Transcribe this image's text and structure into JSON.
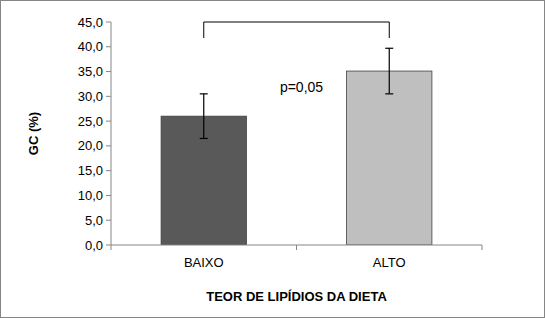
{
  "chart_data": {
    "type": "bar",
    "x_label": "TEOR DE LIPÍDIOS DA DIETA",
    "y_label": "GC (%)",
    "annotations": [
      "p=0,05"
    ],
    "categories": [
      "BAIXO",
      "ALTO"
    ],
    "values": [
      26.0,
      35.1
    ],
    "errors": [
      4.5,
      4.6
    ],
    "colors": [
      "#595959",
      "#bfbfbf"
    ],
    "ylim": [
      0,
      45
    ],
    "yticks": [
      {
        "value": 0,
        "label": "0,0"
      },
      {
        "value": 5,
        "label": "5,0"
      },
      {
        "value": 10,
        "label": "10,0"
      },
      {
        "value": 15,
        "label": "15,0"
      },
      {
        "value": 20,
        "label": "20,0"
      },
      {
        "value": 25,
        "label": "25,0"
      },
      {
        "value": 30,
        "label": "30,0"
      },
      {
        "value": 35,
        "label": "35,0"
      },
      {
        "value": 40,
        "label": "40,0"
      },
      {
        "value": 45,
        "label": "45,0"
      }
    ],
    "grid": false
  }
}
